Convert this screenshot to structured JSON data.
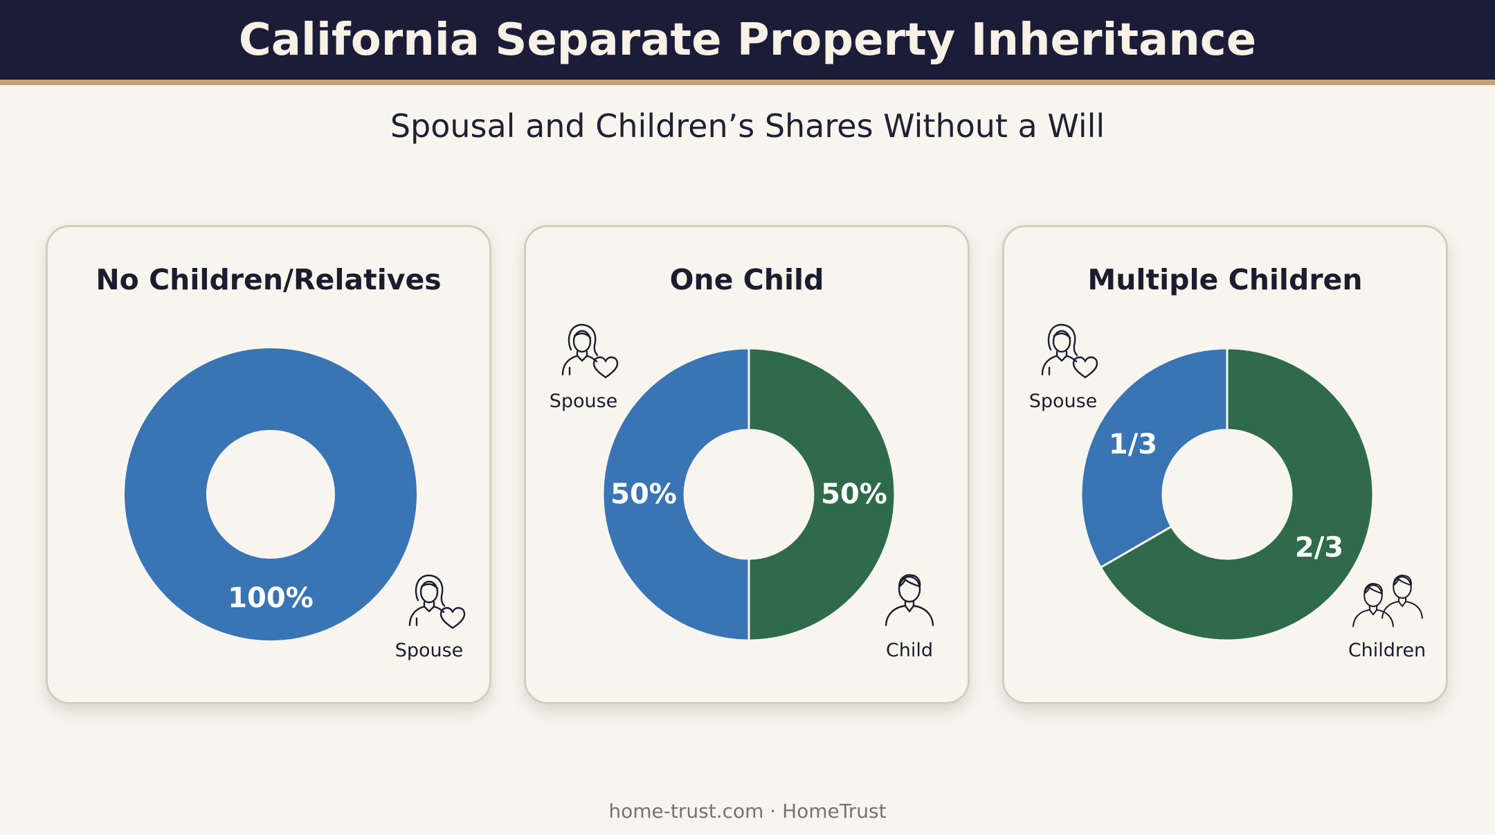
{
  "title": "California Separate Property Inheritance",
  "subtitle": "Spousal and Children’s Shares Without a Will",
  "footer": "home-trust.com · HomeTrust",
  "colors": {
    "header_bg": "#1b1c37",
    "header_rule": "#c2a476",
    "spouse": "#3974b5",
    "children": "#2f6a4b",
    "background": "#f8f5ef"
  },
  "chart_data": [
    {
      "type": "pie",
      "title": "No Children/Relatives",
      "series": [
        {
          "name": "Spouse",
          "value": 100,
          "label": "100%",
          "color": "#3974b5",
          "icon": "spouse-icon"
        }
      ]
    },
    {
      "type": "pie",
      "title": "One Child",
      "series": [
        {
          "name": "Spouse",
          "value": 50,
          "label": "50%",
          "color": "#3974b5",
          "icon": "spouse-icon"
        },
        {
          "name": "Child",
          "value": 50,
          "label": "50%",
          "color": "#2f6a4b",
          "icon": "child-icon"
        }
      ]
    },
    {
      "type": "pie",
      "title": "Multiple Children",
      "series": [
        {
          "name": "Spouse",
          "value": 33.333,
          "label": "1/3",
          "color": "#3974b5",
          "icon": "spouse-icon"
        },
        {
          "name": "Children",
          "value": 66.667,
          "label": "2/3",
          "color": "#2f6a4b",
          "icon": "children-icon"
        }
      ]
    }
  ]
}
